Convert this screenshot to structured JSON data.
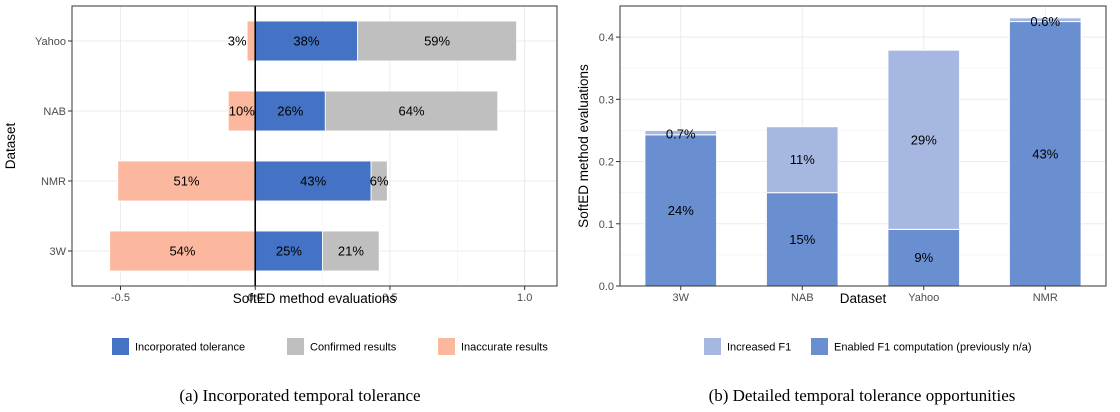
{
  "chart_data": [
    {
      "type": "bar",
      "orientation": "horizontal",
      "stacked": true,
      "categories": [
        "3W",
        "NMR",
        "NAB",
        "Yahoo"
      ],
      "series": [
        {
          "name": "Incorporated tolerance",
          "color": "#4472c4",
          "values": [
            0.25,
            0.43,
            0.26,
            0.38
          ],
          "labels": [
            "25%",
            "43%",
            "26%",
            "38%"
          ]
        },
        {
          "name": "Confirmed results",
          "color": "#bfbfbf",
          "values": [
            0.21,
            0.06,
            0.64,
            0.59
          ],
          "labels": [
            "21%",
            "6%",
            "64%",
            "59%"
          ]
        },
        {
          "name": "Inaccurate results",
          "color": "#fbb89e",
          "values": [
            -0.54,
            -0.51,
            -0.1,
            -0.03
          ],
          "labels": [
            "54%",
            "51%",
            "10%",
            "3%"
          ]
        }
      ],
      "xlabel": "SoftED method evaluations",
      "ylabel": "Dataset",
      "xlim": [
        -0.68,
        1.12
      ],
      "xticks": [
        -0.5,
        0.0,
        0.5,
        1.0
      ],
      "xtick_labels": [
        "-0.5",
        "0.0",
        "0.5",
        "1.0"
      ],
      "grid": true,
      "legend": "bottom",
      "caption": "(a) Incorporated temporal tolerance"
    },
    {
      "type": "bar",
      "orientation": "vertical",
      "stacked": true,
      "categories": [
        "3W",
        "NAB",
        "Yahoo",
        "NMR"
      ],
      "series": [
        {
          "name": "Enabled F1 computation (previously n/a)",
          "color": "#6a8fd0",
          "values": [
            0.243,
            0.15,
            0.091,
            0.425
          ],
          "labels": [
            "24%",
            "15%",
            "9%",
            "43%"
          ]
        },
        {
          "name": "Increased F1",
          "color": "#a6b8e2",
          "values": [
            0.007,
            0.106,
            0.288,
            0.006
          ],
          "labels": [
            "0.7%",
            "11%",
            "29%",
            "0.6%"
          ]
        }
      ],
      "xlabel": "Dataset",
      "ylabel": "SoftED method evaluations",
      "ylim": [
        0,
        0.45
      ],
      "yticks": [
        0.0,
        0.1,
        0.2,
        0.3,
        0.4
      ],
      "ytick_labels": [
        "0.0",
        "0.1",
        "0.2",
        "0.3",
        "0.4"
      ],
      "grid": true,
      "legend": "bottom",
      "caption": "(b) Detailed temporal tolerance opportunities"
    }
  ]
}
